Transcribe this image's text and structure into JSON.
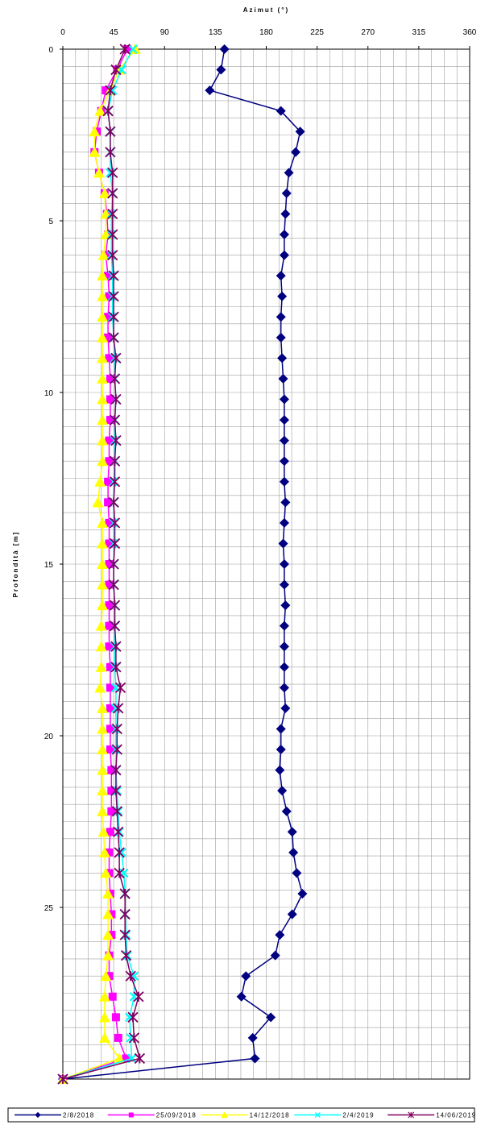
{
  "chart_data": {
    "type": "line",
    "title": "",
    "xlabel": "Azimut (°)",
    "ylabel": "Profondità [m]",
    "xlim": [
      0,
      360
    ],
    "ylim": [
      0,
      30
    ],
    "y_reversed": true,
    "x_axis_position": "top",
    "xticks": [
      0,
      45,
      90,
      135,
      180,
      225,
      270,
      315,
      360
    ],
    "yticks": [
      0,
      5,
      10,
      15,
      20,
      25
    ],
    "x_minor_step": 11.25,
    "y_minor_step": 0.5,
    "grid": true,
    "legend_position": "bottom",
    "y": [
      0,
      0.6,
      1.2,
      1.8,
      2.4,
      3.0,
      3.6,
      4.2,
      4.8,
      5.4,
      6.0,
      6.6,
      7.2,
      7.8,
      8.4,
      9.0,
      9.6,
      10.2,
      10.8,
      11.4,
      12.0,
      12.6,
      13.2,
      13.8,
      14.4,
      15.0,
      15.6,
      16.2,
      16.8,
      17.4,
      18.0,
      18.6,
      19.2,
      19.8,
      20.4,
      21.0,
      21.6,
      22.2,
      22.8,
      23.4,
      24.0,
      24.6,
      25.2,
      25.8,
      26.4,
      27.0,
      27.6,
      28.2,
      28.8,
      29.4,
      30.0
    ],
    "series": [
      {
        "name": "2/8/2018",
        "color": "#000080",
        "marker": "diamond",
        "values": [
          143,
          140,
          130,
          193,
          210,
          206,
          200,
          198,
          197,
          196,
          196,
          193,
          194,
          193,
          193,
          194,
          195,
          196,
          196,
          196,
          196,
          196,
          197,
          196,
          195,
          196,
          196,
          197,
          196,
          196,
          196,
          196,
          197,
          193,
          193,
          192,
          194,
          198,
          203,
          204,
          207,
          212,
          203,
          192,
          188,
          162,
          158,
          184,
          168,
          170,
          0
        ]
      },
      {
        "name": "25/09/2018",
        "color": "#ff00ff",
        "marker": "square",
        "values": [
          57,
          48,
          38,
          34,
          30,
          28,
          32,
          37,
          39,
          40,
          38,
          40,
          41,
          40,
          40,
          41,
          42,
          42,
          42,
          41,
          41,
          40,
          40,
          41,
          41,
          41,
          41,
          41,
          41,
          41,
          42,
          42,
          42,
          42,
          42,
          43,
          43,
          43,
          42,
          41,
          41,
          42,
          43,
          43,
          41,
          41,
          44,
          47,
          49,
          56,
          0
        ]
      },
      {
        "name": "14/12/2018",
        "color": "#ffff00",
        "marker": "triangle",
        "values": [
          64,
          50,
          42,
          33,
          28,
          28,
          32,
          37,
          38,
          38,
          36,
          35,
          35,
          35,
          35,
          35,
          35,
          35,
          35,
          35,
          35,
          33,
          31,
          35,
          35,
          35,
          35,
          35,
          34,
          34,
          34,
          33,
          35,
          35,
          35,
          35,
          35,
          35,
          36,
          37,
          38,
          40,
          40,
          40,
          40,
          38,
          37,
          37,
          37,
          50,
          0
        ]
      },
      {
        "name": "2/4/2019",
        "color": "#00ffff",
        "marker": "x",
        "values": [
          62,
          52,
          44,
          40,
          42,
          42,
          42,
          44,
          43,
          43,
          43,
          44,
          44,
          44,
          45,
          46,
          46,
          47,
          46,
          46,
          46,
          45,
          45,
          45,
          45,
          45,
          45,
          46,
          46,
          46,
          46,
          47,
          47,
          47,
          47,
          47,
          48,
          49,
          50,
          52,
          54,
          55,
          55,
          56,
          57,
          63,
          63,
          59,
          60,
          61,
          0
        ]
      },
      {
        "name": "14/06/2019",
        "color": "#800060",
        "marker": "star",
        "values": [
          55,
          47,
          42,
          40,
          42,
          42,
          44,
          44,
          44,
          44,
          44,
          45,
          45,
          45,
          45,
          47,
          46,
          47,
          46,
          47,
          46,
          46,
          45,
          46,
          46,
          45,
          45,
          46,
          46,
          47,
          47,
          51,
          49,
          48,
          48,
          47,
          47,
          48,
          49,
          50,
          50,
          55,
          55,
          55,
          56,
          60,
          67,
          62,
          63,
          68,
          0
        ]
      }
    ]
  }
}
